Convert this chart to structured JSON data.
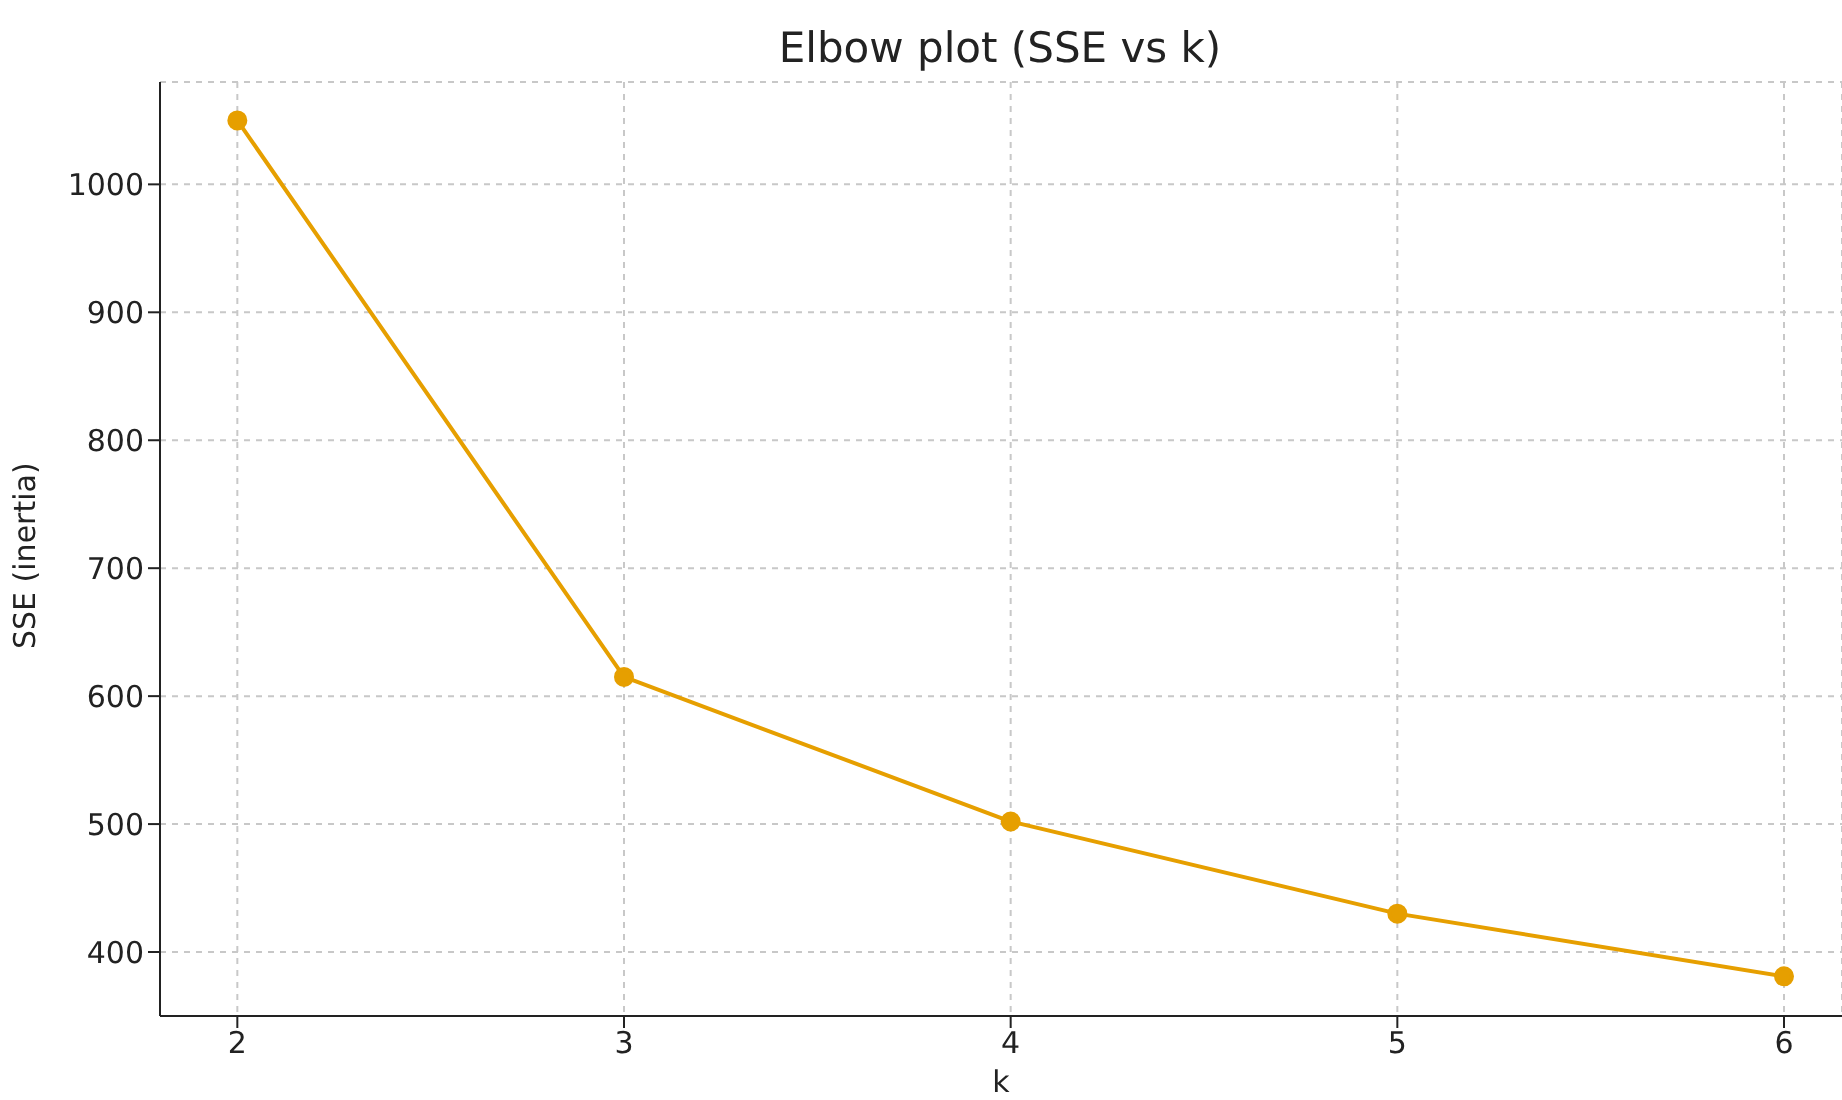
{
  "chart_data": {
    "type": "line",
    "title": "Elbow plot (SSE vs k)",
    "xlabel": "k",
    "ylabel": "SSE (inertia)",
    "x": [
      2,
      3,
      4,
      5,
      6
    ],
    "series": [
      {
        "color": "#e69f00",
        "values": [
          1050,
          615,
          502,
          430,
          381
        ]
      }
    ],
    "xlim": [
      1.8,
      6.15
    ],
    "xticks": [
      2,
      3,
      4,
      5,
      6
    ],
    "ylim": [
      350,
      1080
    ],
    "yticks": [
      400,
      500,
      600,
      700,
      800,
      900,
      1000
    ],
    "grid": true,
    "marker": "circle",
    "line_style": "solid"
  }
}
